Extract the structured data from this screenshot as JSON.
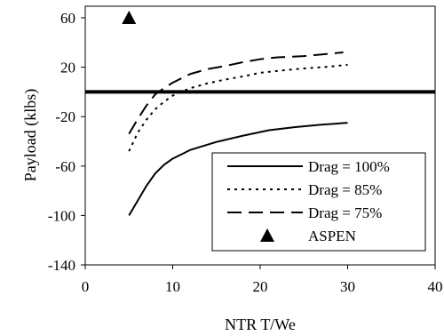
{
  "chart_data": {
    "type": "line",
    "title": "",
    "xlabel": "NTR T/We",
    "ylabel": "Payload (klbs)",
    "xlim": [
      0,
      40
    ],
    "ylim": [
      -140,
      70
    ],
    "xticks": [
      0,
      10,
      20,
      30,
      40
    ],
    "yticks": [
      60,
      20,
      -20,
      -60,
      -100,
      -140
    ],
    "xtick_labels": [
      "0",
      "10",
      "20",
      "30",
      "40"
    ],
    "ytick_labels": [
      "60",
      "20",
      "-20",
      "-60",
      "-100",
      "-140"
    ],
    "grid": false,
    "legend_position": "bottom-right",
    "reference_line": {
      "y": 0,
      "style": "thick-solid"
    },
    "series": [
      {
        "name": "Drag = 100%",
        "style": "solid",
        "x": [
          5,
          6,
          7,
          8,
          9,
          10,
          12,
          15,
          18,
          21,
          24,
          27,
          30
        ],
        "y": [
          -100,
          -88,
          -76,
          -66,
          -59,
          -54,
          -47,
          -40.5,
          -35.5,
          -31,
          -28.5,
          -26.5,
          -25
        ]
      },
      {
        "name": "Drag = 85%",
        "style": "dotted",
        "x": [
          5,
          6,
          7,
          8,
          9,
          10,
          12,
          14,
          16,
          18,
          20,
          22,
          25,
          28,
          30
        ],
        "y": [
          -48,
          -33,
          -22.5,
          -14,
          -8,
          -3,
          3,
          7,
          10,
          12.5,
          15.5,
          17,
          19,
          20.5,
          22
        ]
      },
      {
        "name": "Drag = 75%",
        "style": "dashed",
        "x": [
          5,
          6,
          7,
          8,
          9,
          10,
          12,
          14,
          16,
          18,
          20,
          22,
          25,
          28,
          29.5
        ],
        "y": [
          -34,
          -22,
          -11,
          -2,
          3,
          7.5,
          14.5,
          18.5,
          21,
          24,
          26.5,
          28,
          29,
          31,
          32
        ]
      },
      {
        "name": "ASPEN",
        "style": "marker-triangle",
        "x": [
          5
        ],
        "y": [
          60
        ]
      }
    ]
  }
}
